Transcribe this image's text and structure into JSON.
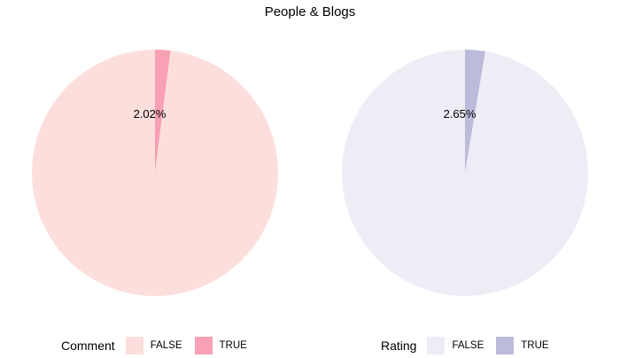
{
  "title": "People & Blogs",
  "chart_data": [
    {
      "type": "pie",
      "legend_title": "Comment",
      "slices": [
        {
          "label": "FALSE",
          "value": 97.98,
          "color": "#fcdfdc"
        },
        {
          "label": "TRUE",
          "value": 2.02,
          "color": "#f8a0b4"
        }
      ],
      "data_label": "2.02%",
      "legend_position": "bottom"
    },
    {
      "type": "pie",
      "legend_title": "Rating",
      "slices": [
        {
          "label": "FALSE",
          "value": 97.35,
          "color": "#eeedf6"
        },
        {
          "label": "TRUE",
          "value": 2.65,
          "color": "#bcbbdb"
        }
      ],
      "data_label": "2.65%",
      "legend_position": "bottom"
    }
  ]
}
